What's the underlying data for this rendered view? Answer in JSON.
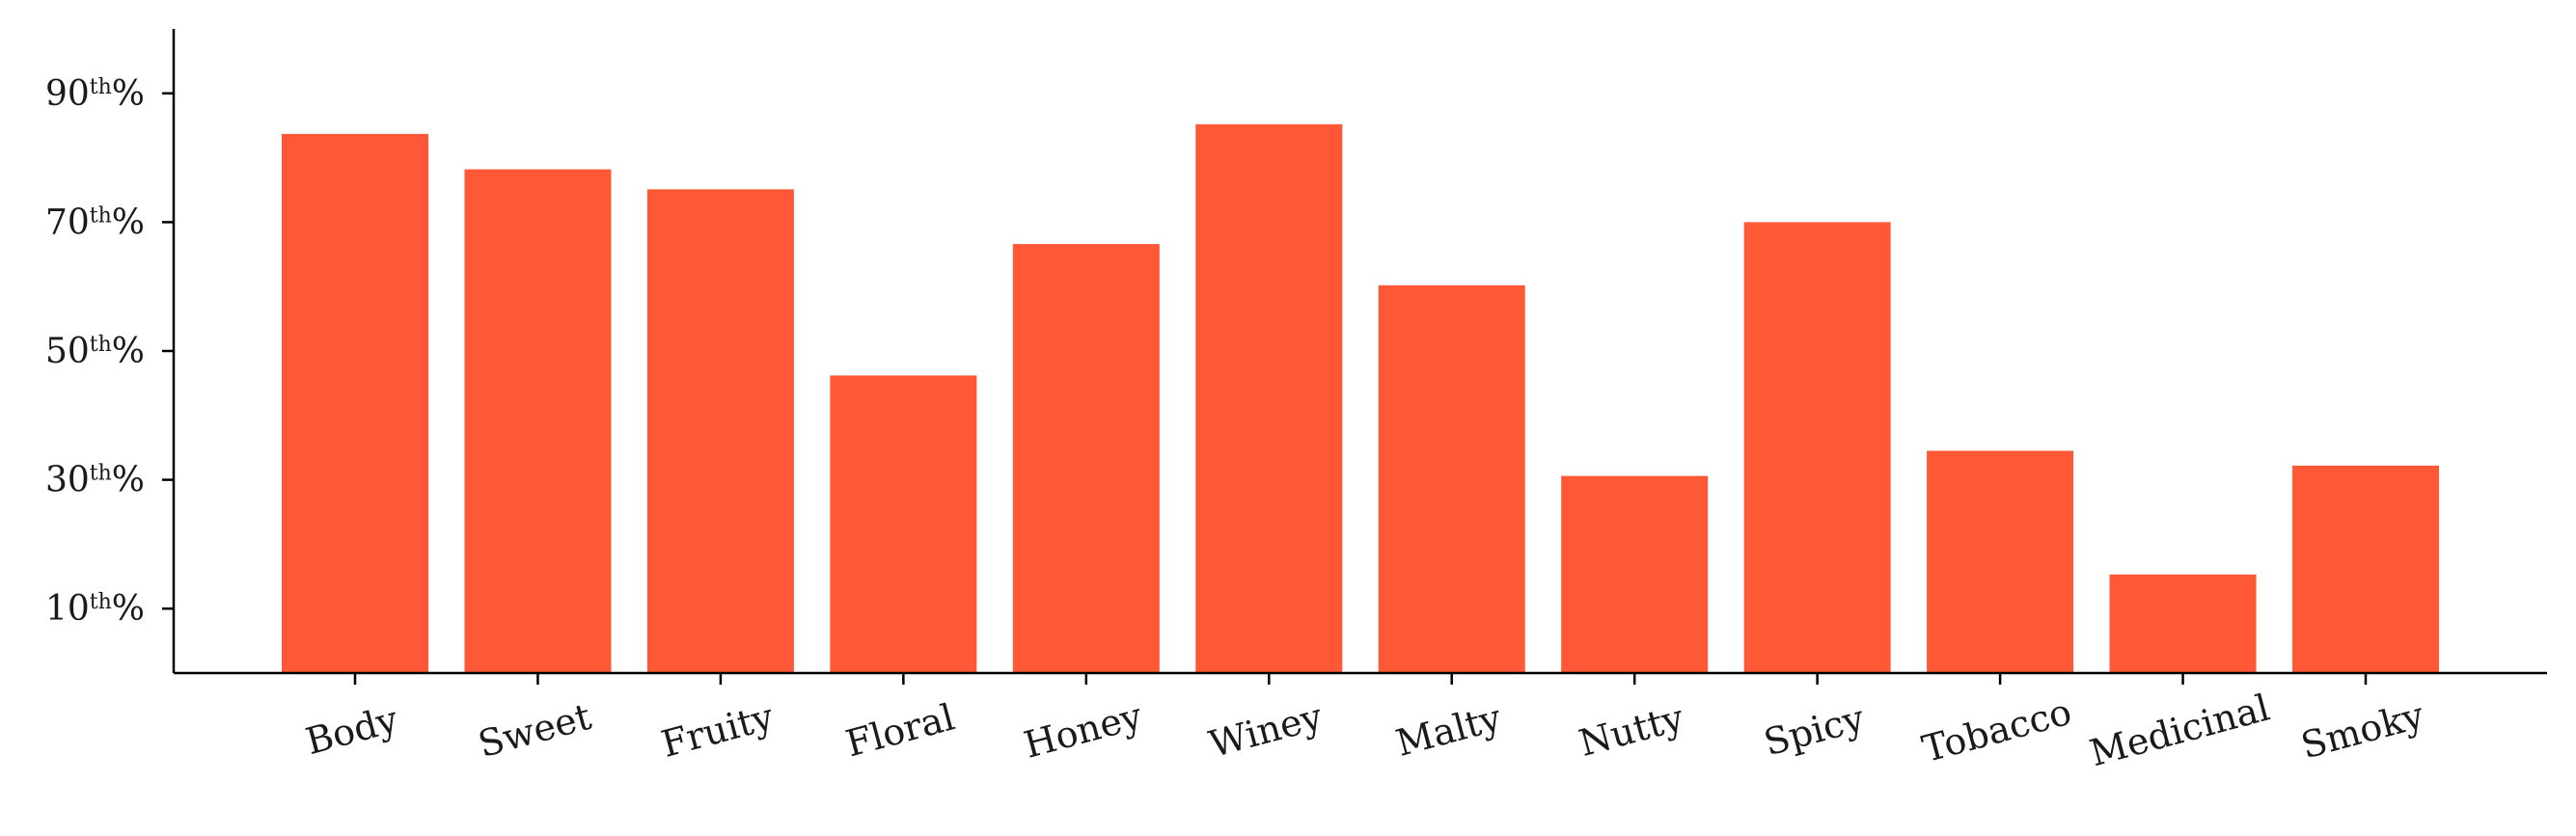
{
  "chart_data": {
    "type": "bar",
    "categories": [
      "Body",
      "Sweet",
      "Fruity",
      "Floral",
      "Honey",
      "Winey",
      "Malty",
      "Nutty",
      "Spicy",
      "Tobacco",
      "Medicinal",
      "Smoky"
    ],
    "values": [
      83.7,
      78.2,
      75.1,
      46.2,
      66.6,
      85.2,
      60.2,
      30.6,
      70.0,
      34.5,
      15.3,
      32.2
    ],
    "ylim": [
      0,
      100
    ],
    "yticks": [
      {
        "value": 10,
        "num": "10",
        "sup": "th",
        "suffix": "%"
      },
      {
        "value": 30,
        "num": "30",
        "sup": "th",
        "suffix": "%"
      },
      {
        "value": 50,
        "num": "50",
        "sup": "th",
        "suffix": "%"
      },
      {
        "value": 70,
        "num": "70",
        "sup": "th",
        "suffix": "%"
      },
      {
        "value": 90,
        "num": "90",
        "sup": "th",
        "suffix": "%"
      }
    ],
    "title": "",
    "xlabel": "",
    "ylabel": "",
    "grid": false,
    "bar_color": "#FF5837",
    "axis_color": "#000000"
  }
}
